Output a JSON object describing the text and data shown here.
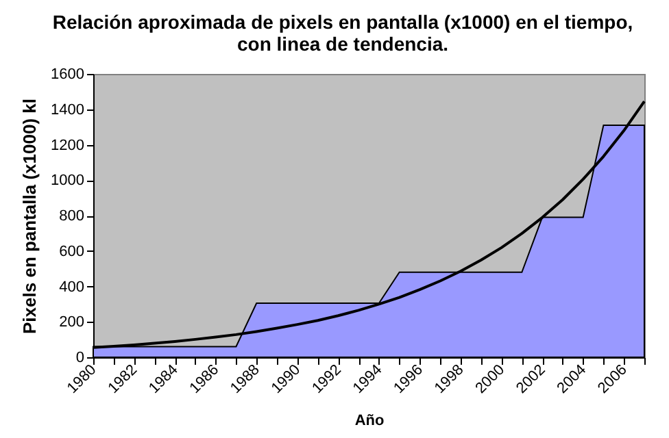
{
  "chart_data": {
    "type": "area",
    "title": [
      "Relación aproximada de pixels en pantalla (x1000) en el tiempo,",
      "con linea de tendencia."
    ],
    "xlabel": "Año",
    "ylabel": "Pixels en pantalla   (x1000) kl",
    "x": [
      1980,
      1981,
      1982,
      1983,
      1984,
      1985,
      1986,
      1987,
      1988,
      1989,
      1990,
      1991,
      1992,
      1993,
      1994,
      1995,
      1996,
      1997,
      1998,
      1999,
      2000,
      2001,
      2002,
      2003,
      2004,
      2005,
      2006,
      2007
    ],
    "series": [
      {
        "color": "#9999ff",
        "values": [
          60,
          60,
          60,
          60,
          60,
          60,
          60,
          60,
          305,
          305,
          305,
          305,
          305,
          305,
          305,
          480,
          480,
          480,
          480,
          480,
          480,
          480,
          790,
          790,
          790,
          1310,
          1310,
          1310
        ]
      },
      {
        "type": "line",
        "color": "#000000",
        "values": [
          55,
          62,
          70,
          79,
          89,
          101,
          114,
          128,
          145,
          164,
          185,
          208,
          235,
          265,
          300,
          338,
          382,
          431,
          486,
          549,
          619,
          699,
          789,
          890,
          1005,
          1134,
          1280,
          1445
        ]
      }
    ],
    "xlim": [
      1980,
      2007
    ],
    "xticks": [
      1980,
      {
        "value": 1981,
        "label": null
      },
      1982,
      {
        "value": 1983,
        "label": null
      },
      1984,
      {
        "value": 1985,
        "label": null
      },
      1986,
      {
        "value": 1987,
        "label": null
      },
      1988,
      {
        "value": 1989,
        "label": null
      },
      1990,
      {
        "value": 1991,
        "label": null
      },
      1992,
      {
        "value": 1993,
        "label": null
      },
      1994,
      {
        "value": 1995,
        "label": null
      },
      1996,
      {
        "value": 1997,
        "label": null
      },
      1998,
      {
        "value": 1999,
        "label": null
      },
      2000,
      {
        "value": 2001,
        "label": null
      },
      2002,
      {
        "value": 2003,
        "label": null
      },
      2004,
      {
        "value": 2005,
        "label": null
      },
      2006,
      {
        "value": 2007,
        "label": null
      }
    ],
    "ylim": [
      0,
      1600
    ],
    "yticks": [
      0,
      200,
      400,
      600,
      800,
      1000,
      1200,
      1400,
      1600
    ],
    "grid": false
  }
}
